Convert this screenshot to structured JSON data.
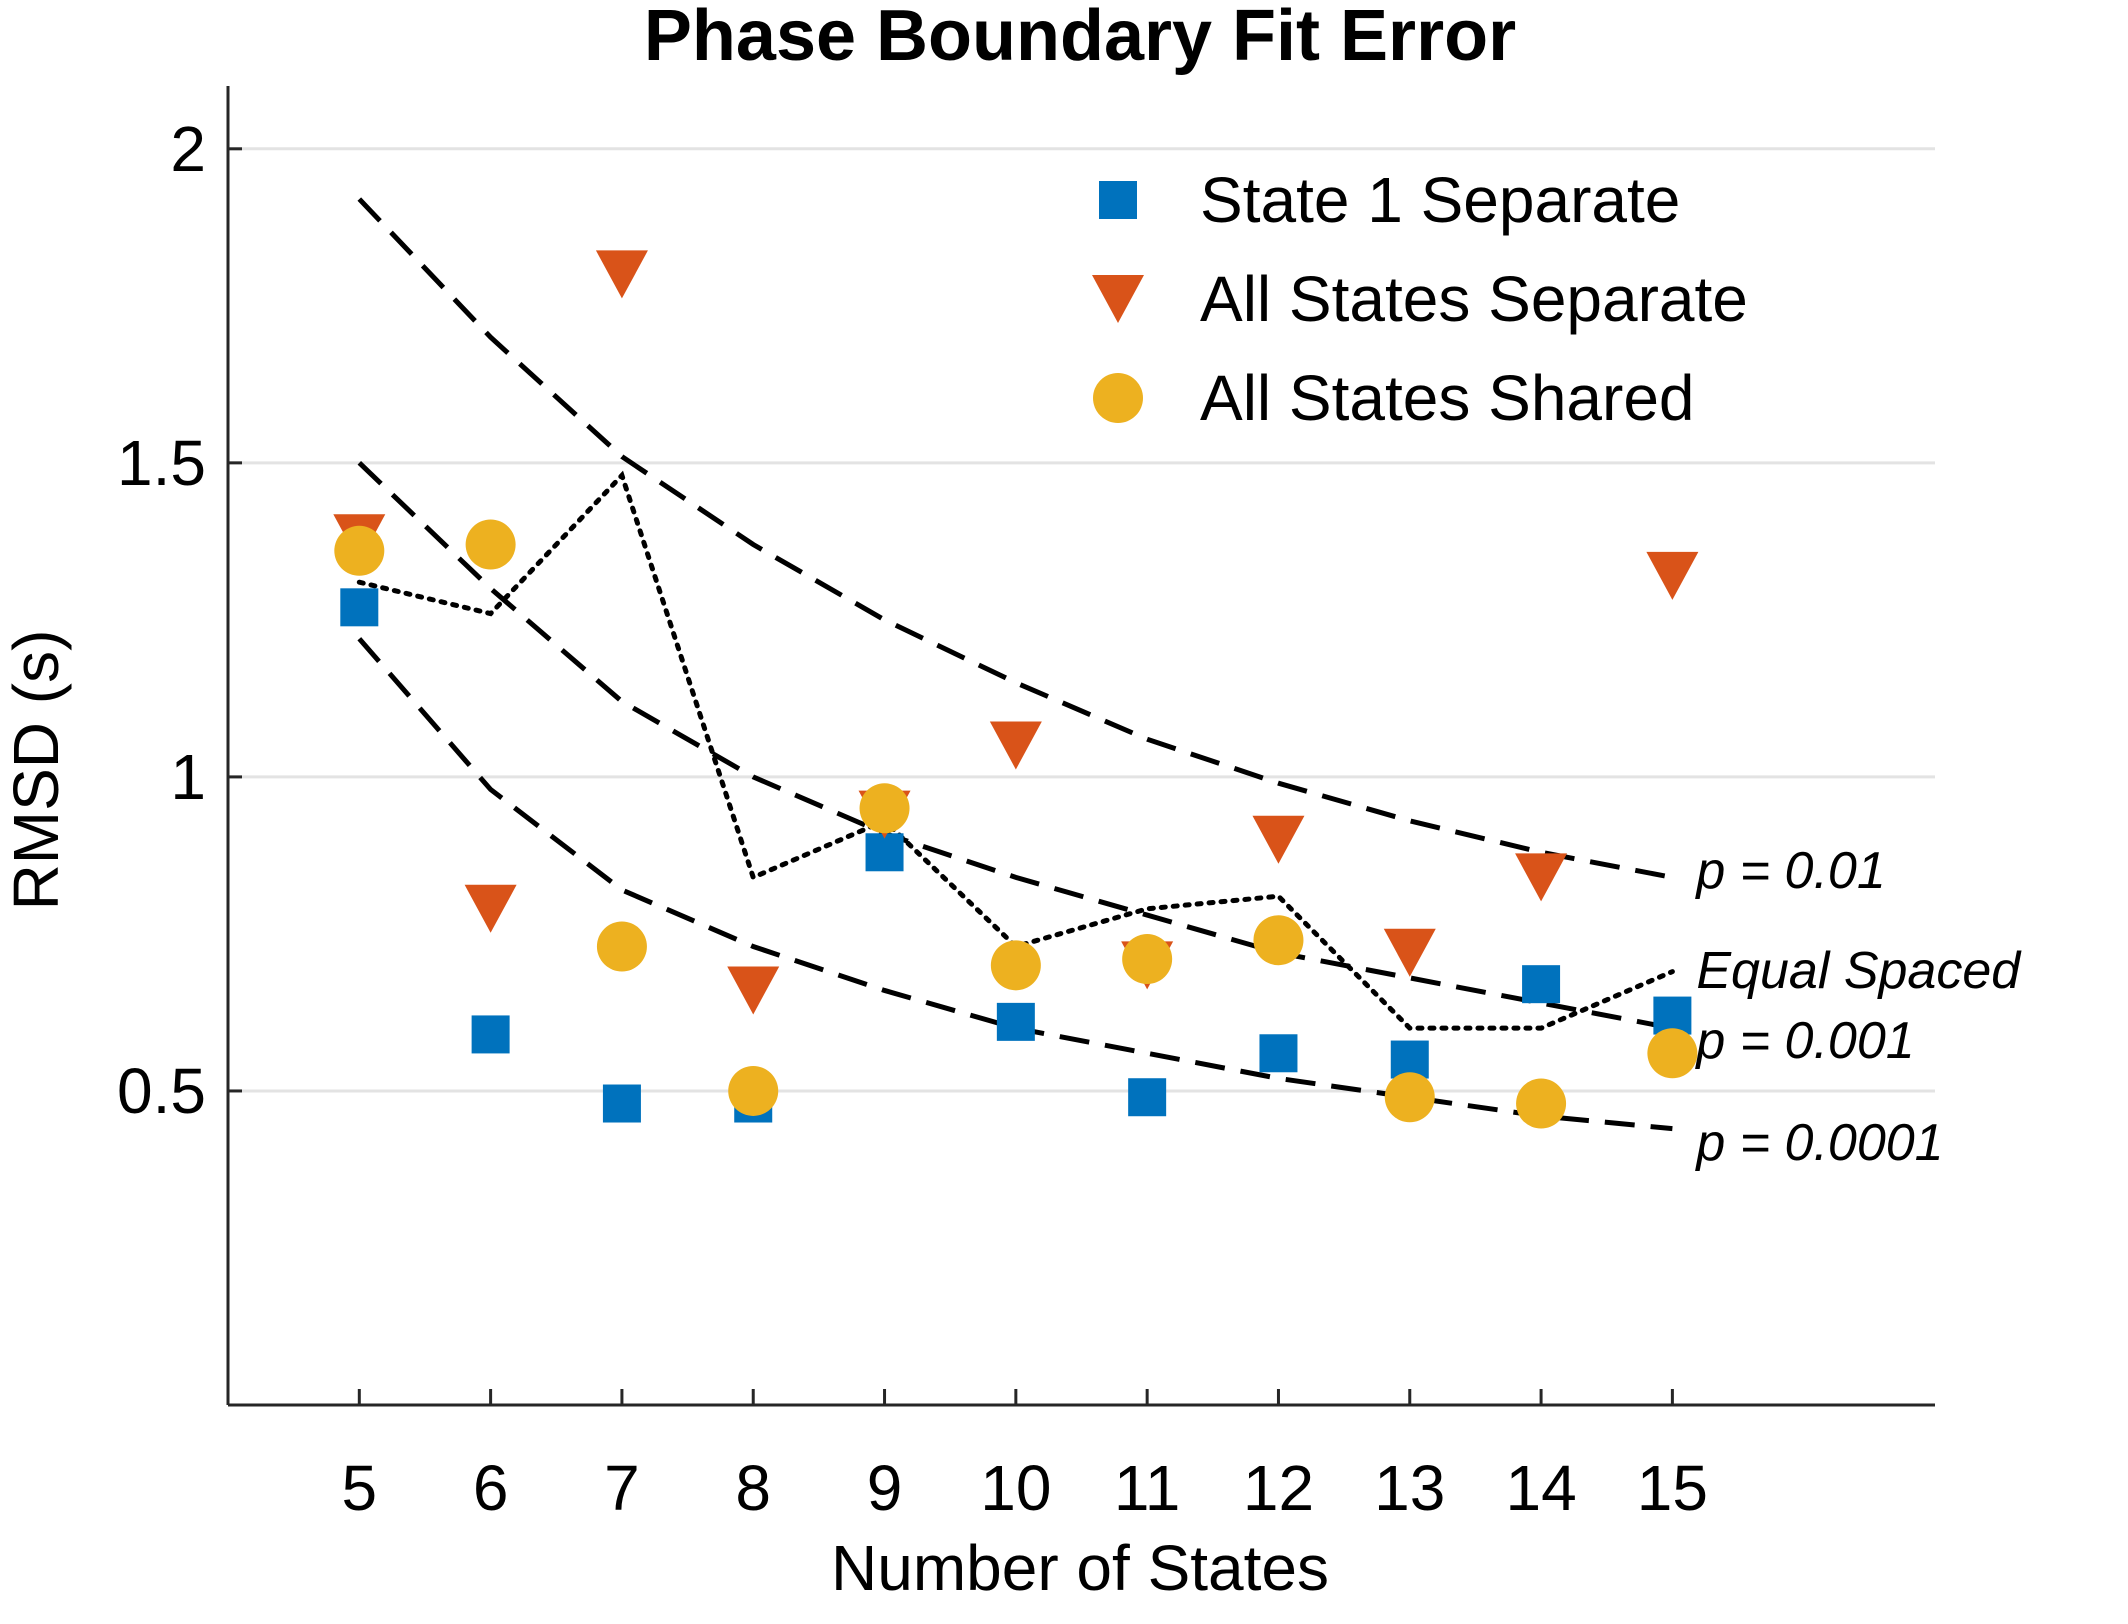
{
  "chart_data": {
    "type": "scatter",
    "title": "Phase Boundary Fit Error",
    "xlabel": "Number of States",
    "ylabel": "RMSD (s)",
    "xlim": [
      4,
      17
    ],
    "ylim": [
      0,
      2.1
    ],
    "xticks": [
      5,
      6,
      7,
      8,
      9,
      10,
      11,
      12,
      13,
      14,
      15
    ],
    "xtick_labels": [
      "5",
      "6",
      "7",
      "8",
      "9",
      "10",
      "11",
      "12",
      "13",
      "14",
      "15"
    ],
    "yticks": [
      0.5,
      1,
      1.5,
      2
    ],
    "ytick_labels": [
      "0.5",
      "1",
      "1.5",
      "2"
    ],
    "grid": "horizontal",
    "legend_position": "top-right",
    "series": [
      {
        "name": "State 1 Separate",
        "marker": "square",
        "color": "#0072BD",
        "x": [
          5,
          6,
          7,
          8,
          9,
          10,
          11,
          12,
          13,
          14,
          15
        ],
        "y": [
          1.27,
          0.59,
          0.48,
          0.48,
          0.88,
          0.61,
          0.49,
          0.56,
          0.55,
          0.67,
          0.62
        ]
      },
      {
        "name": "All States Separate",
        "marker": "triangle-down",
        "color": "#D95319",
        "x": [
          5,
          6,
          7,
          8,
          9,
          10,
          11,
          12,
          13,
          14,
          15
        ],
        "y": [
          1.38,
          0.79,
          1.8,
          0.66,
          0.94,
          1.05,
          0.7,
          0.9,
          0.72,
          0.84,
          1.32
        ]
      },
      {
        "name": "All States Shared",
        "marker": "circle",
        "color": "#EDB120",
        "x": [
          5,
          6,
          7,
          8,
          9,
          10,
          11,
          12,
          13,
          14,
          15
        ],
        "y": [
          1.36,
          1.37,
          0.73,
          0.5,
          0.95,
          0.7,
          0.71,
          0.74,
          0.49,
          0.48,
          0.56
        ]
      }
    ],
    "reference_lines": [
      {
        "label": "p = 0.01",
        "style": "dashed",
        "color": "#000000",
        "x": [
          5,
          6,
          7,
          8,
          9,
          10,
          11,
          12,
          13,
          14,
          15
        ],
        "y": [
          1.92,
          1.7,
          1.51,
          1.37,
          1.25,
          1.15,
          1.06,
          0.99,
          0.93,
          0.88,
          0.84
        ]
      },
      {
        "label": "p = 0.001",
        "style": "dashed",
        "color": "#000000",
        "x": [
          5,
          6,
          7,
          8,
          9,
          10,
          11,
          12,
          13,
          14,
          15
        ],
        "y": [
          1.5,
          1.3,
          1.12,
          1.0,
          0.91,
          0.84,
          0.78,
          0.72,
          0.68,
          0.64,
          0.6
        ]
      },
      {
        "label": "p = 0.0001",
        "style": "dashed",
        "color": "#000000",
        "x": [
          5,
          6,
          7,
          8,
          9,
          10,
          11,
          12,
          13,
          14,
          15
        ],
        "y": [
          1.22,
          0.98,
          0.82,
          0.73,
          0.66,
          0.6,
          0.56,
          0.52,
          0.49,
          0.46,
          0.44
        ]
      },
      {
        "label": "Equal Spaced",
        "style": "dotted",
        "color": "#000000",
        "x": [
          5,
          6,
          7,
          8,
          9,
          10,
          11,
          12,
          13,
          14,
          15
        ],
        "y": [
          1.31,
          1.26,
          1.48,
          0.84,
          0.93,
          0.73,
          0.79,
          0.81,
          0.6,
          0.6,
          0.69
        ]
      }
    ]
  }
}
